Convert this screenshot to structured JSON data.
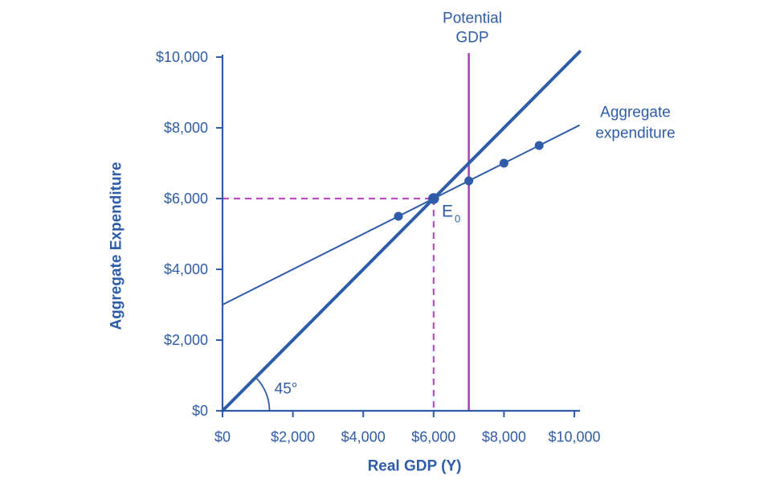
{
  "chart_data": {
    "type": "line",
    "title": "",
    "xlabel": "Real GDP (Y)",
    "ylabel": "Aggregate Expenditure",
    "xlim": [
      0,
      10000
    ],
    "ylim": [
      0,
      10000
    ],
    "grid": false,
    "legend_position": "none",
    "x_ticks": [
      0,
      2000,
      4000,
      6000,
      8000,
      10000
    ],
    "y_ticks": [
      0,
      2000,
      4000,
      6000,
      8000,
      10000
    ],
    "x_tick_labels": [
      "$0",
      "$2,000",
      "$4,000",
      "$6,000",
      "$8,000",
      "$10,000"
    ],
    "y_tick_labels": [
      "$0",
      "$2,000",
      "$4,000",
      "$6,000",
      "$8,000",
      "$10,000"
    ],
    "series": [
      {
        "name": "45-degree line",
        "thickness": "thick",
        "points": [
          [
            0,
            0
          ],
          [
            10150,
            10150
          ]
        ]
      },
      {
        "name": "Aggregate expenditure",
        "thickness": "thin",
        "points": [
          [
            0,
            3000
          ],
          [
            10150,
            8075
          ]
        ]
      }
    ],
    "ae_points": [
      [
        5000,
        5500
      ],
      [
        6000,
        6000
      ],
      [
        7000,
        6500
      ],
      [
        8000,
        7000
      ],
      [
        9000,
        7500
      ]
    ],
    "equilibrium": {
      "x": 6000,
      "y": 6000,
      "label": "E",
      "label_sub": "0"
    },
    "dashed_guides": {
      "x": 6000,
      "y": 6000
    },
    "potential_gdp_line": {
      "x": 7000,
      "label_line1": "Potential",
      "label_line2": "GDP"
    },
    "ae_curve_label": {
      "line1": "Aggregate",
      "line2": "expenditure"
    },
    "angle_label": "45°",
    "colors": {
      "blue": "#2e5ca8",
      "purple": "#9a44b2",
      "magenta": "#bb4cc4"
    }
  }
}
